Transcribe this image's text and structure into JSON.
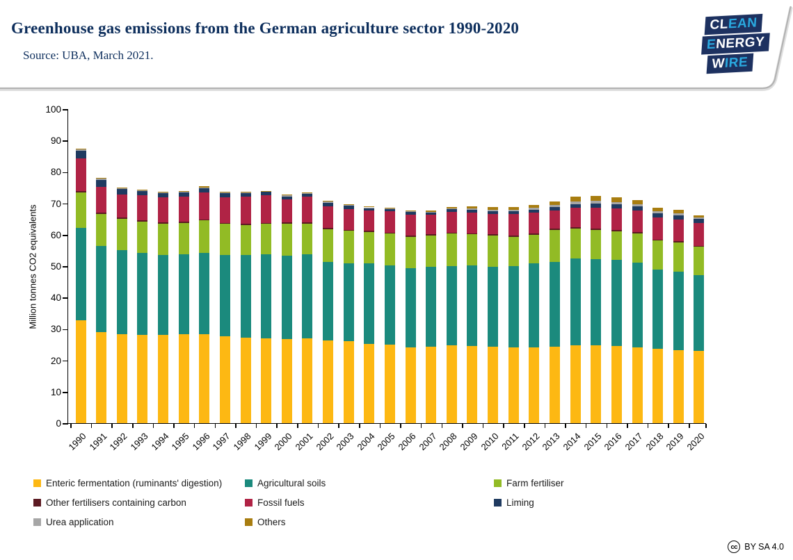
{
  "header": {
    "title": "Greenhouse gas emissions from the German agriculture sector 1990-2020",
    "source": "Source: UBA, March 2021.",
    "logo": {
      "background": "#1d3160",
      "rows": [
        {
          "parts": [
            {
              "text": "CL",
              "color": "#ffffff"
            },
            {
              "text": "EAN",
              "color": "#2aa9e0"
            }
          ]
        },
        {
          "parts": [
            {
              "text": "E",
              "color": "#2aa9e0"
            },
            {
              "text": "NERGY",
              "color": "#ffffff"
            }
          ]
        },
        {
          "parts": [
            {
              "text": "W",
              "color": "#ffffff"
            },
            {
              "text": "IRE",
              "color": "#2aa9e0"
            }
          ]
        }
      ]
    }
  },
  "chart_data": {
    "type": "bar",
    "stacked": true,
    "ylabel": "Million tonnes CO2 equivalents",
    "ylim": [
      0,
      100
    ],
    "ytick_step": 10,
    "grid": false,
    "legend_position": "bottom",
    "categories": [
      "1990",
      "1991",
      "1992",
      "1993",
      "1994",
      "1995",
      "1996",
      "1997",
      "1998",
      "1999",
      "2000",
      "2001",
      "2002",
      "2003",
      "2004",
      "2005",
      "2006",
      "2007",
      "2008",
      "2009",
      "2010",
      "2011",
      "2012",
      "2013",
      "2014",
      "2015",
      "2016",
      "2017",
      "2018",
      "2019",
      "2020"
    ],
    "series": [
      {
        "name": "Enteric fermentation (ruminants' digestion)",
        "color": "#FDB813",
        "values": [
          32.8,
          28.9,
          28.3,
          28.1,
          28.2,
          28.3,
          28.4,
          27.6,
          27.3,
          27.0,
          26.7,
          27.1,
          26.3,
          26.0,
          25.2,
          25.0,
          24.2,
          24.4,
          24.7,
          24.6,
          24.4,
          24.2,
          24.2,
          24.4,
          24.7,
          24.7,
          24.5,
          24.1,
          23.6,
          23.3,
          23.0
        ]
      },
      {
        "name": "Agricultural soils",
        "color": "#1B8A7D",
        "values": [
          29.4,
          27.6,
          26.9,
          26.2,
          25.4,
          25.5,
          25.8,
          25.9,
          26.3,
          26.7,
          26.6,
          26.7,
          25.1,
          24.9,
          25.6,
          25.2,
          25.2,
          25.3,
          25.4,
          25.7,
          25.4,
          25.8,
          26.7,
          27.0,
          27.8,
          27.6,
          27.4,
          27.1,
          25.3,
          24.9,
          24.2
        ]
      },
      {
        "name": "Farm fertiliser",
        "color": "#92BB25",
        "values": [
          11.2,
          10.1,
          9.9,
          9.9,
          9.9,
          9.9,
          10.3,
          9.9,
          9.5,
          9.7,
          10.2,
          9.8,
          10.3,
          10.3,
          10.0,
          10.1,
          9.9,
          10.0,
          10.2,
          9.8,
          9.9,
          9.4,
          9.1,
          10.1,
          9.5,
          9.3,
          9.1,
          9.2,
          9.2,
          9.3,
          8.9
        ]
      },
      {
        "name": "Other fertilisers containing carbon",
        "color": "#5C1A22",
        "values": [
          0.4,
          0.4,
          0.4,
          0.4,
          0.4,
          0.4,
          0.4,
          0.4,
          0.4,
          0.4,
          0.4,
          0.4,
          0.4,
          0.4,
          0.4,
          0.4,
          0.4,
          0.4,
          0.4,
          0.4,
          0.4,
          0.4,
          0.4,
          0.4,
          0.4,
          0.4,
          0.4,
          0.4,
          0.4,
          0.4,
          0.4
        ]
      },
      {
        "name": "Fossil fuels",
        "color": "#B02345",
        "values": [
          10.5,
          8.3,
          7.2,
          7.9,
          7.9,
          8.1,
          8.6,
          8.2,
          8.6,
          8.8,
          7.3,
          8.1,
          6.9,
          6.5,
          6.6,
          6.8,
          6.7,
          6.2,
          6.5,
          6.6,
          6.4,
          6.7,
          6.6,
          5.9,
          6.1,
          6.6,
          6.9,
          6.8,
          7.1,
          7.0,
          7.2
        ]
      },
      {
        "name": "Liming",
        "color": "#1F3A60",
        "values": [
          2.4,
          2.2,
          1.8,
          1.5,
          1.4,
          1.3,
          1.4,
          1.2,
          1.1,
          1.0,
          1.0,
          0.9,
          1.2,
          1.1,
          0.7,
          0.7,
          0.8,
          0.8,
          0.9,
          0.9,
          1.0,
          0.9,
          1.0,
          1.1,
          1.3,
          1.3,
          1.3,
          1.4,
          1.3,
          1.3,
          1.3
        ]
      },
      {
        "name": "Urea application",
        "color": "#A6A6A6",
        "values": [
          0.4,
          0.4,
          0.3,
          0.2,
          0.2,
          0.2,
          0.2,
          0.2,
          0.2,
          0.2,
          0.3,
          0.2,
          0.3,
          0.3,
          0.2,
          0.2,
          0.2,
          0.2,
          0.3,
          0.4,
          0.5,
          0.5,
          0.5,
          0.5,
          0.8,
          0.8,
          0.8,
          0.7,
          0.6,
          0.6,
          0.5
        ]
      },
      {
        "name": "Others",
        "color": "#A87D10",
        "values": [
          0.2,
          0.2,
          0.2,
          0.2,
          0.2,
          0.2,
          0.4,
          0.3,
          0.2,
          0.2,
          0.3,
          0.3,
          0.3,
          0.3,
          0.3,
          0.3,
          0.2,
          0.4,
          0.5,
          0.6,
          0.7,
          0.8,
          0.9,
          1.2,
          1.6,
          1.6,
          1.5,
          1.4,
          1.0,
          1.1,
          0.7
        ]
      }
    ]
  },
  "legend_columns": [
    [
      0,
      3,
      6
    ],
    [
      1,
      4,
      7
    ],
    [
      2,
      5
    ]
  ],
  "footer": {
    "cc_icon": "cc",
    "license": "BY SA 4.0"
  }
}
